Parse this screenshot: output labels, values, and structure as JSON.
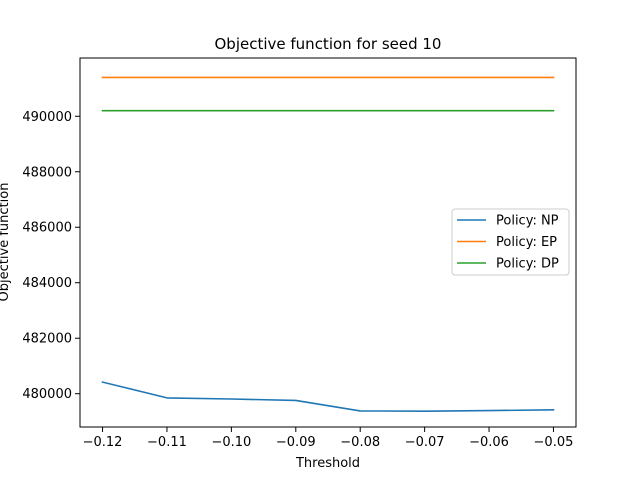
{
  "chart_data": {
    "type": "line",
    "title": "Objective function for seed 10",
    "xlabel": "Threshold",
    "ylabel": "Objective function",
    "x": [
      -0.12,
      -0.11,
      -0.1,
      -0.09,
      -0.08,
      -0.07,
      -0.06,
      -0.05
    ],
    "xlim": [
      -0.1235,
      -0.0465
    ],
    "ylim": [
      478800,
      492100
    ],
    "xticks": [
      -0.12,
      -0.11,
      -0.1,
      -0.09,
      -0.08,
      -0.07,
      -0.06,
      -0.05
    ],
    "xtick_labels": [
      "−0.12",
      "−0.11",
      "−0.10",
      "−0.09",
      "−0.08",
      "−0.07",
      "−0.06",
      "−0.05"
    ],
    "yticks": [
      480000,
      482000,
      484000,
      486000,
      488000,
      490000
    ],
    "ytick_labels": [
      "480000",
      "482000",
      "484000",
      "486000",
      "488000",
      "490000"
    ],
    "grid": false,
    "legend_position": "center-right",
    "series": [
      {
        "name": "Policy: NP",
        "color": "#1f77b4",
        "values": [
          480420,
          479850,
          479810,
          479760,
          479380,
          479370,
          479390,
          479420
        ]
      },
      {
        "name": "Policy: EP",
        "color": "#ff7f0e",
        "values": [
          491400,
          491400,
          491400,
          491400,
          491400,
          491400,
          491400,
          491400
        ]
      },
      {
        "name": "Policy: DP",
        "color": "#2ca02c",
        "values": [
          490200,
          490200,
          490200,
          490200,
          490200,
          490200,
          490200,
          490200
        ]
      }
    ]
  }
}
